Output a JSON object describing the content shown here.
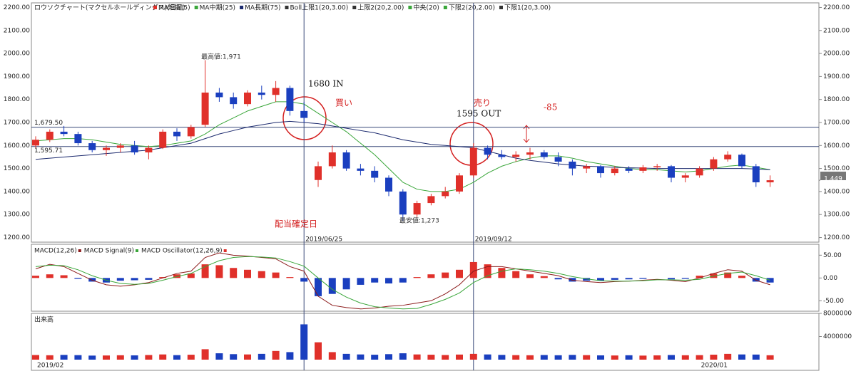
{
  "chart_data": [
    {
      "type": "candlestick",
      "title": "ロウソクチャート(マクセルホールディングス)(日足)",
      "categories": [
        "2019/02",
        null,
        null,
        null,
        null,
        null,
        null,
        null,
        null,
        null,
        null,
        null,
        null,
        null,
        null,
        null,
        null,
        null,
        null,
        "2019/06/25",
        null,
        null,
        null,
        null,
        null,
        null,
        null,
        null,
        null,
        null,
        null,
        "2019/09/12",
        null,
        null,
        null,
        null,
        null,
        null,
        null,
        null,
        null,
        null,
        null,
        null,
        null,
        null,
        null,
        "2020/01",
        null,
        null,
        null,
        null,
        null
      ],
      "open": [
        1600,
        1625,
        1660,
        1650,
        1610,
        1580,
        1590,
        1600,
        1570,
        1590,
        1660,
        1640,
        1690,
        1830,
        1810,
        1780,
        1830,
        1820,
        1850,
        1750,
        1450,
        1510,
        1570,
        1500,
        1490,
        1460,
        1400,
        1300,
        1350,
        1380,
        1400,
        1470,
        1590,
        1560,
        1550,
        1560,
        1570,
        1550,
        1530,
        1500,
        1510,
        1480,
        1500,
        1490,
        1505,
        1510,
        1460,
        1470,
        1500,
        1540,
        1560,
        1510,
        1440
      ],
      "high": [
        1640,
        1670,
        1685,
        1660,
        1620,
        1600,
        1610,
        1620,
        1600,
        1670,
        1675,
        1690,
        1971,
        1850,
        1830,
        1840,
        1860,
        1880,
        1860,
        1790,
        1530,
        1600,
        1580,
        1520,
        1510,
        1470,
        1410,
        1360,
        1390,
        1420,
        1480,
        1610,
        1600,
        1580,
        1575,
        1590,
        1580,
        1570,
        1540,
        1520,
        1515,
        1510,
        1510,
        1515,
        1520,
        1515,
        1480,
        1510,
        1550,
        1575,
        1565,
        1520,
        1470
      ],
      "low": [
        1590,
        1615,
        1640,
        1600,
        1570,
        1555,
        1570,
        1560,
        1540,
        1585,
        1620,
        1630,
        1680,
        1790,
        1760,
        1770,
        1800,
        1790,
        1730,
        1700,
        1420,
        1500,
        1490,
        1470,
        1440,
        1380,
        1273,
        1290,
        1340,
        1370,
        1390,
        1460,
        1540,
        1540,
        1530,
        1540,
        1540,
        1510,
        1470,
        1480,
        1460,
        1470,
        1480,
        1480,
        1490,
        1440,
        1440,
        1460,
        1490,
        1530,
        1500,
        1420,
        1420
      ],
      "close": [
        1625,
        1660,
        1650,
        1610,
        1580,
        1590,
        1600,
        1570,
        1590,
        1660,
        1640,
        1680,
        1830,
        1810,
        1780,
        1830,
        1820,
        1850,
        1750,
        1720,
        1510,
        1570,
        1500,
        1490,
        1460,
        1400,
        1300,
        1350,
        1380,
        1400,
        1470,
        1590,
        1560,
        1550,
        1560,
        1570,
        1550,
        1530,
        1500,
        1510,
        1480,
        1500,
        1490,
        1505,
        1510,
        1460,
        1470,
        1500,
        1540,
        1560,
        1510,
        1440,
        1449
      ],
      "up_color": "#e0302a",
      "down_color": "#1a3fbf",
      "series": [
        {
          "name": "MA中期(25)",
          "color": "#3aa63a",
          "values": [
            1620,
            1625,
            1630,
            1630,
            1625,
            1615,
            1605,
            1600,
            1595,
            1600,
            1610,
            1620,
            1650,
            1690,
            1720,
            1750,
            1770,
            1790,
            1790,
            1780,
            1740,
            1700,
            1660,
            1610,
            1560,
            1500,
            1440,
            1410,
            1400,
            1400,
            1410,
            1440,
            1480,
            1510,
            1530,
            1545,
            1555,
            1555,
            1545,
            1530,
            1520,
            1510,
            1500,
            1495,
            1495,
            1490,
            1485,
            1490,
            1500,
            1510,
            1515,
            1505,
            1495
          ]
        },
        {
          "name": "MA長期(75)",
          "color": "#1c2a6e",
          "values": [
            1540,
            1545,
            1550,
            1555,
            1560,
            1565,
            1570,
            1575,
            1580,
            1590,
            1600,
            1610,
            1630,
            1650,
            1665,
            1680,
            1690,
            1700,
            1705,
            1700,
            1695,
            1685,
            1675,
            1665,
            1655,
            1640,
            1625,
            1615,
            1605,
            1600,
            1595,
            1590,
            1575,
            1560,
            1545,
            1535,
            1528,
            1520,
            1515,
            1510,
            1508,
            1505,
            1503,
            1502,
            1500,
            1500,
            1500,
            1500,
            1500,
            1500,
            1500,
            1498,
            1495
          ]
        }
      ],
      "legend_extra": [
        {
          "name": "MA短期(5)",
          "color": "#e0302a"
        },
        {
          "name": "Boll上限1(20,3.00)",
          "color": "#333333"
        },
        {
          "name": "上限2(20,2.00)",
          "color": "#333333"
        },
        {
          "name": "中央(20)",
          "color": "#3aa63a"
        },
        {
          "name": "下限2(20,2.00)",
          "color": "#3aa63a"
        },
        {
          "name": "下限1(20,3.00)",
          "color": "#333333"
        }
      ],
      "ylim": [
        1180,
        2220
      ],
      "yticks": [
        {
          "value": 1200,
          "label": "1200.00"
        },
        {
          "value": 1300,
          "label": "1300.00"
        },
        {
          "value": 1400,
          "label": "1400.00"
        },
        {
          "value": 1500,
          "label": "1500.00"
        },
        {
          "value": 1600,
          "label": "1600.00"
        },
        {
          "value": 1700,
          "label": "1700.00"
        },
        {
          "value": 1800,
          "label": "1800.00"
        },
        {
          "value": 1900,
          "label": "1900.00"
        },
        {
          "value": 2000,
          "label": "2000.00"
        },
        {
          "value": 2100,
          "label": "2100.00"
        },
        {
          "value": 2200,
          "label": "2200.00"
        }
      ],
      "hlines": [
        1679.5,
        1595.71
      ],
      "hline_labels": [
        "1,679.50",
        "1,595.71"
      ],
      "last_price": {
        "value": 1449,
        "label": "1,449"
      },
      "annotations": [
        "最高値:1,971",
        "最安値:1,273",
        "1680 IN",
        "買い",
        "売り",
        "1595 OUT",
        "-85",
        "配当確定日"
      ]
    },
    {
      "type": "macd",
      "series": [
        {
          "name": "MACD(12,26)",
          "color": "#8b1a1a",
          "values": [
            20,
            30,
            25,
            10,
            -5,
            -15,
            -18,
            -15,
            -10,
            0,
            10,
            15,
            45,
            55,
            50,
            48,
            45,
            42,
            25,
            15,
            -40,
            -60,
            -65,
            -68,
            -66,
            -62,
            -60,
            -55,
            -50,
            -35,
            -15,
            15,
            25,
            25,
            20,
            15,
            10,
            5,
            -5,
            -8,
            -10,
            -8,
            -7,
            -5,
            -3,
            -5,
            -8,
            0,
            10,
            18,
            15,
            -5,
            -15
          ]
        },
        {
          "name": "MACD Signal(9)",
          "color": "#3aa63a",
          "values": [
            25,
            28,
            27,
            18,
            5,
            -5,
            -12,
            -14,
            -12,
            -5,
            3,
            10,
            25,
            38,
            45,
            47,
            46,
            44,
            36,
            26,
            0,
            -25,
            -42,
            -55,
            -63,
            -66,
            -68,
            -67,
            -58,
            -47,
            -33,
            -10,
            5,
            15,
            20,
            18,
            15,
            10,
            3,
            -2,
            -6,
            -7,
            -7,
            -6,
            -4,
            -4,
            -5,
            -3,
            4,
            10,
            13,
            5,
            -5
          ]
        },
        {
          "name": "MACD Oscillator(12,26,9)",
          "color": "#e0302a",
          "negative_color": "#1a3fbf",
          "values": [
            5,
            8,
            6,
            -2,
            -8,
            -10,
            -6,
            -5,
            -4,
            2,
            8,
            10,
            30,
            28,
            22,
            18,
            15,
            12,
            2,
            -8,
            -40,
            -35,
            -25,
            -15,
            -10,
            -12,
            -10,
            2,
            8,
            12,
            18,
            35,
            30,
            22,
            15,
            8,
            4,
            -3,
            -8,
            -6,
            -6,
            -4,
            -3,
            -2,
            0,
            -3,
            -2,
            5,
            10,
            12,
            5,
            -8,
            -10
          ]
        }
      ],
      "ylim": [
        -73,
        74
      ],
      "yticks": [
        {
          "value": 50,
          "label": "50.00"
        },
        {
          "value": 0,
          "label": "0.00"
        },
        {
          "value": -50,
          "label": "-50.00"
        }
      ]
    },
    {
      "type": "bar",
      "title": "出来高",
      "values": [
        800000,
        760000,
        820000,
        780000,
        700000,
        720000,
        760000,
        740000,
        800000,
        900000,
        780000,
        850000,
        1800000,
        1100000,
        950000,
        900000,
        1000000,
        1500000,
        1300000,
        6100000,
        3000000,
        1300000,
        1000000,
        900000,
        850000,
        950000,
        1100000,
        900000,
        850000,
        800000,
        880000,
        1000000,
        900000,
        820000,
        780000,
        760000,
        800000,
        760000,
        820000,
        780000,
        740000,
        720000,
        760000,
        700000,
        740000,
        800000,
        760000,
        780000,
        860000,
        1000000,
        900000,
        880000,
        760000
      ],
      "ylim": [
        0,
        8000000
      ],
      "yticks": [
        4000000,
        8000000
      ]
    }
  ]
}
